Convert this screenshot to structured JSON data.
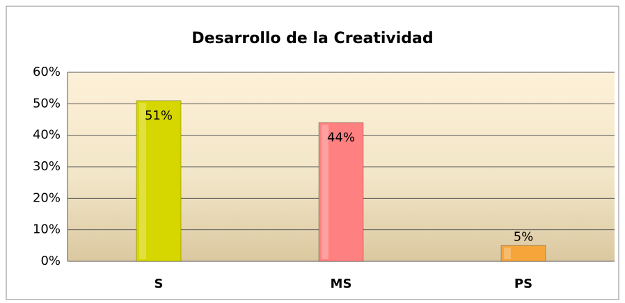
{
  "chart_data": {
    "type": "bar",
    "title": "Desarrollo de la Creatividad",
    "categories": [
      "S",
      "MS",
      "PS"
    ],
    "values": [
      51,
      44,
      5
    ],
    "value_labels": [
      "51%",
      "44%",
      "5%"
    ],
    "colors": [
      "#d6d600",
      "#ff8080",
      "#f5a53a"
    ],
    "ylim": [
      0,
      60
    ],
    "yticks": [
      {
        "value": 0,
        "label": "0%"
      },
      {
        "value": 10,
        "label": "10%"
      },
      {
        "value": 20,
        "label": "20%"
      },
      {
        "value": 30,
        "label": "30%"
      },
      {
        "value": 40,
        "label": "40%"
      },
      {
        "value": 50,
        "label": "50%"
      },
      {
        "value": 60,
        "label": "60%"
      }
    ],
    "grid": true
  }
}
